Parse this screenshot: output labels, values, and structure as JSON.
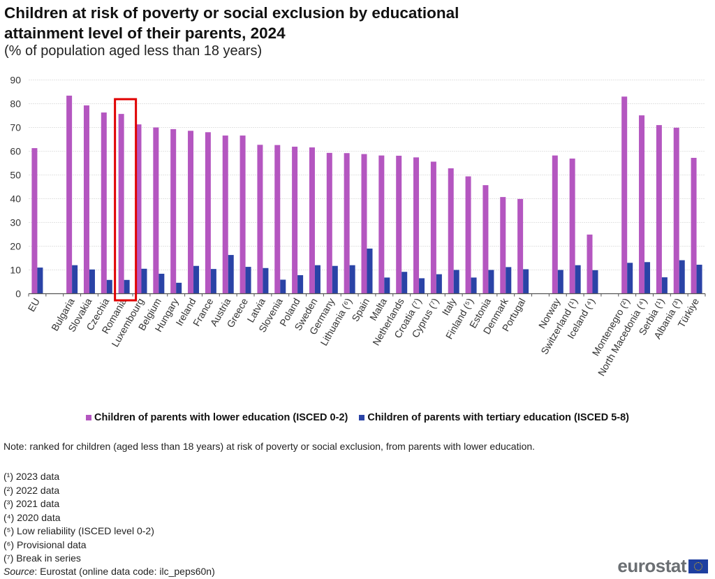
{
  "header": {
    "title": "Children at risk of poverty or social exclusion by educational attainment level of their parents, 2024",
    "subtitle": "(% of population aged less than 18 years)"
  },
  "chart_data": {
    "type": "bar",
    "title": "Children at risk of poverty or social exclusion by educational attainment level of their parents, 2024",
    "subtitle": "(% of population aged less than 18 years)",
    "xlabel": "",
    "ylabel": "",
    "ylim": [
      0,
      90
    ],
    "yticks": [
      0,
      10,
      20,
      30,
      40,
      50,
      60,
      70,
      80,
      90
    ],
    "grid": true,
    "legend_position": "bottom",
    "highlight": "Romania",
    "highlight_color": "#e00000",
    "categories": [
      "EU",
      "",
      "Bulgaria",
      "Slovakia",
      "Czechia",
      "Romania",
      "Luxembourg",
      "Belgium",
      "Hungary",
      "Ireland",
      "France",
      "Austria",
      "Greece",
      "Latvia",
      "Slovenia",
      "Poland",
      "Sweden",
      "Germany",
      "Lithuania (⁶)",
      "Spain",
      "Malta",
      "Netherlands",
      "Croatia (⁷)",
      "Cyprus (⁷)",
      "Italy",
      "Finland (⁵)",
      "Estonia",
      "Denmark",
      "Portugal",
      "",
      "Norway",
      "Switzerland (¹)",
      "Iceland (⁴)",
      "",
      "Montenegro (²)",
      "North Macedonia (⁴)",
      "Serbia (¹)",
      "Albania (³)",
      "Türkiye"
    ],
    "series": [
      {
        "name": "Children of parents with lower education (ISCED 0-2)",
        "color": "#b456c0",
        "values": [
          61.3,
          null,
          83.4,
          79.3,
          76.3,
          75.7,
          71.3,
          70.0,
          69.3,
          68.6,
          68.0,
          66.6,
          66.6,
          62.7,
          62.6,
          61.9,
          61.6,
          59.3,
          59.2,
          58.8,
          58.2,
          58.1,
          57.4,
          55.6,
          52.8,
          49.4,
          45.7,
          40.7,
          39.9,
          null,
          58.2,
          56.9,
          24.9,
          null,
          83.0,
          75.1,
          71.0,
          69.9,
          57.2
        ]
      },
      {
        "name": "Children of parents with tertiary education (ISCED 5-8)",
        "color": "#2a43a6",
        "values": [
          11.0,
          null,
          12.0,
          10.2,
          5.8,
          5.8,
          10.5,
          8.4,
          4.6,
          11.7,
          10.4,
          16.3,
          11.3,
          10.8,
          5.9,
          7.8,
          12.0,
          11.7,
          12.0,
          19.0,
          6.8,
          9.2,
          6.5,
          8.2,
          10.0,
          6.8,
          10.0,
          11.2,
          10.3,
          null,
          10.0,
          12.0,
          9.9,
          null,
          13.0,
          13.3,
          6.9,
          14.1,
          12.2
        ]
      }
    ]
  },
  "legend": {
    "items": [
      {
        "label": "Children of parents with lower education (ISCED 0-2)",
        "color": "#b456c0"
      },
      {
        "label": "Children of parents with tertiary education (ISCED 5-8)",
        "color": "#2a43a6"
      }
    ]
  },
  "notes": {
    "note": "Note: ranked for children (aged less than 18 years) at risk of poverty or social exclusion, from parents with lower education.",
    "footnotes": [
      "(¹) 2023 data",
      "(²) 2022 data",
      "(³) 2021 data",
      "(⁴) 2020 data",
      "(⁵) Low reliability (ISCED level 0-2)",
      "(⁶) Provisional data",
      "(⁷) Break in series"
    ],
    "source_label": "Source",
    "source_text": ": Eurostat (online data code: ilc_peps60n)"
  },
  "branding": {
    "logo_text": "eurostat"
  }
}
